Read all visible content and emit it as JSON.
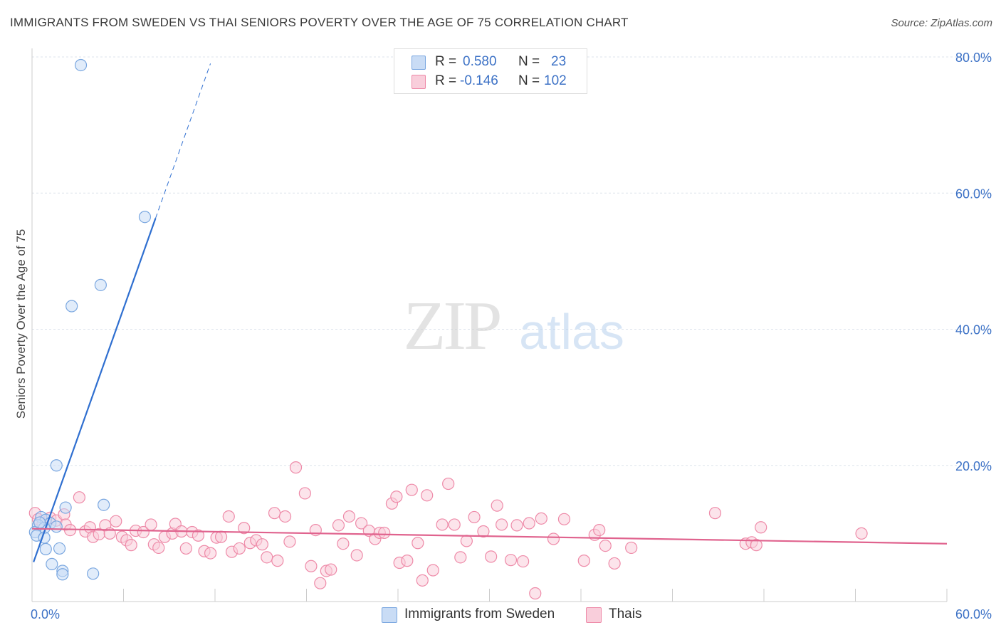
{
  "header": {
    "title": "IMMIGRANTS FROM SWEDEN VS THAI SENIORS POVERTY OVER THE AGE OF 75 CORRELATION CHART",
    "source": "Source: ZipAtlas.com"
  },
  "watermark": {
    "zip": "ZIP",
    "atlas": "atlas"
  },
  "legend": {
    "rows": [
      {
        "r_label": "R =",
        "r_value": "0.580",
        "n_label": "N =",
        "n_value": "23",
        "color": "#a8c6f0"
      },
      {
        "r_label": "R =",
        "r_value": "-0.146",
        "n_label": "N =",
        "n_value": "102",
        "color": "#f7b8cb"
      }
    ]
  },
  "bottom_legend": [
    {
      "label": "Immigrants from Sweden",
      "color": "#a8c6f0"
    },
    {
      "label": "Thais",
      "color": "#f7b8cb"
    }
  ],
  "chart_data": {
    "type": "scatter",
    "title": "IMMIGRANTS FROM SWEDEN VS THAI SENIORS POVERTY OVER THE AGE OF 75 CORRELATION CHART",
    "xlabel": "",
    "ylabel": "Seniors Poverty Over the Age of 75",
    "xlim": [
      0,
      60
    ],
    "ylim": [
      0,
      80
    ],
    "x_tick_labels": {
      "0": "0.0%",
      "60": "60.0%"
    },
    "y_tick_labels": [
      {
        "value": 20,
        "label": "20.0%"
      },
      {
        "value": 40,
        "label": "40.0%"
      },
      {
        "value": 60,
        "label": "60.0%"
      },
      {
        "value": 80,
        "label": "80.0%"
      }
    ],
    "grid": true,
    "series": [
      {
        "name": "Immigrants from Sweden",
        "stroke": "#7aa7e0",
        "fill": "#c9dcf5",
        "line_color": "#2f6fd0",
        "points": [
          [
            3.2,
            78.8
          ],
          [
            7.4,
            56.5
          ],
          [
            4.5,
            46.5
          ],
          [
            2.6,
            43.4
          ],
          [
            1.6,
            20.0
          ],
          [
            4.7,
            14.2
          ],
          [
            2.2,
            13.8
          ],
          [
            0.6,
            12.4
          ],
          [
            0.9,
            12.0
          ],
          [
            1.2,
            11.5
          ],
          [
            0.4,
            11.2
          ],
          [
            1.6,
            11.0
          ],
          [
            0.8,
            10.8
          ],
          [
            0.2,
            10.2
          ],
          [
            0.3,
            9.7
          ],
          [
            0.8,
            9.4
          ],
          [
            0.9,
            7.7
          ],
          [
            1.8,
            7.8
          ],
          [
            1.3,
            5.5
          ],
          [
            2.0,
            4.5
          ],
          [
            2.0,
            4.0
          ],
          [
            4.0,
            4.1
          ],
          [
            0.5,
            11.6
          ]
        ],
        "trend": {
          "x0": 0.1,
          "y0": 5.8,
          "x1": 8.1,
          "y1": 56.3,
          "x_dash_end": 11.7
        }
      },
      {
        "name": "Thais",
        "stroke": "#ee8aa8",
        "fill": "#f9cedb",
        "line_color": "#e0638e",
        "points": [
          [
            0.2,
            13.0
          ],
          [
            0.4,
            12.1
          ],
          [
            0.7,
            11.4
          ],
          [
            1.2,
            12.3
          ],
          [
            1.6,
            11.9
          ],
          [
            2.1,
            12.8
          ],
          [
            2.2,
            11.3
          ],
          [
            2.5,
            10.5
          ],
          [
            3.1,
            15.3
          ],
          [
            3.5,
            10.3
          ],
          [
            3.8,
            10.9
          ],
          [
            4.0,
            9.5
          ],
          [
            4.4,
            9.9
          ],
          [
            4.8,
            11.2
          ],
          [
            5.1,
            10.0
          ],
          [
            5.5,
            11.8
          ],
          [
            5.9,
            9.5
          ],
          [
            6.2,
            9.0
          ],
          [
            6.5,
            8.3
          ],
          [
            6.8,
            10.4
          ],
          [
            7.3,
            10.2
          ],
          [
            7.8,
            11.3
          ],
          [
            8.0,
            8.4
          ],
          [
            8.3,
            7.9
          ],
          [
            8.7,
            9.5
          ],
          [
            9.2,
            10.0
          ],
          [
            9.4,
            11.4
          ],
          [
            9.8,
            10.3
          ],
          [
            10.1,
            7.8
          ],
          [
            10.5,
            10.2
          ],
          [
            10.9,
            9.7
          ],
          [
            11.3,
            7.4
          ],
          [
            11.7,
            7.1
          ],
          [
            12.1,
            9.4
          ],
          [
            12.4,
            9.5
          ],
          [
            12.9,
            12.5
          ],
          [
            13.1,
            7.3
          ],
          [
            13.6,
            7.8
          ],
          [
            13.9,
            10.8
          ],
          [
            14.3,
            8.6
          ],
          [
            14.7,
            9.0
          ],
          [
            15.1,
            8.4
          ],
          [
            15.4,
            6.5
          ],
          [
            15.9,
            13.0
          ],
          [
            16.1,
            6.0
          ],
          [
            16.6,
            12.5
          ],
          [
            16.9,
            8.8
          ],
          [
            17.3,
            19.7
          ],
          [
            17.9,
            15.9
          ],
          [
            18.3,
            5.2
          ],
          [
            18.6,
            10.5
          ],
          [
            18.9,
            2.7
          ],
          [
            19.3,
            4.5
          ],
          [
            19.6,
            4.7
          ],
          [
            20.1,
            11.2
          ],
          [
            20.4,
            8.5
          ],
          [
            20.8,
            12.5
          ],
          [
            21.3,
            6.8
          ],
          [
            21.6,
            11.5
          ],
          [
            22.1,
            10.4
          ],
          [
            22.5,
            9.2
          ],
          [
            22.8,
            10.1
          ],
          [
            23.1,
            10.1
          ],
          [
            23.6,
            14.4
          ],
          [
            23.9,
            15.4
          ],
          [
            24.1,
            5.7
          ],
          [
            24.6,
            6.0
          ],
          [
            24.9,
            16.4
          ],
          [
            25.3,
            8.6
          ],
          [
            25.6,
            3.1
          ],
          [
            25.9,
            15.6
          ],
          [
            26.3,
            4.6
          ],
          [
            26.9,
            11.3
          ],
          [
            27.3,
            17.3
          ],
          [
            27.7,
            11.3
          ],
          [
            28.1,
            6.5
          ],
          [
            28.5,
            8.9
          ],
          [
            29.0,
            12.4
          ],
          [
            29.6,
            10.3
          ],
          [
            30.1,
            6.6
          ],
          [
            30.5,
            14.1
          ],
          [
            30.8,
            11.3
          ],
          [
            31.4,
            6.1
          ],
          [
            31.8,
            11.2
          ],
          [
            32.2,
            5.9
          ],
          [
            32.6,
            11.5
          ],
          [
            33.0,
            1.2
          ],
          [
            33.4,
            12.2
          ],
          [
            34.2,
            9.2
          ],
          [
            34.9,
            12.1
          ],
          [
            36.2,
            6.0
          ],
          [
            36.9,
            9.8
          ],
          [
            37.2,
            10.5
          ],
          [
            37.6,
            8.2
          ],
          [
            38.2,
            5.6
          ],
          [
            39.3,
            7.9
          ],
          [
            44.8,
            13.0
          ],
          [
            46.8,
            8.5
          ],
          [
            47.2,
            8.7
          ],
          [
            47.5,
            8.3
          ],
          [
            47.8,
            10.9
          ],
          [
            54.4,
            10.0
          ]
        ],
        "trend": {
          "x0": 0,
          "y0": 10.7,
          "x1": 60,
          "y1": 8.5
        }
      }
    ]
  }
}
